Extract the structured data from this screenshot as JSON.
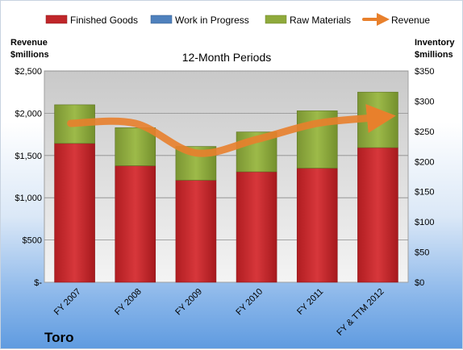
{
  "company": "Toro",
  "colors": {
    "finished_goods": "#c0262a",
    "work_in_progress": "#4f81bd",
    "raw_materials": "#8faa3c",
    "revenue": "#e8802c"
  },
  "chart_data": {
    "type": "bar",
    "title": "12-Month Periods",
    "stacked": true,
    "categories": [
      "FY 2007",
      "FY 2008",
      "FY 2009",
      "FY 2010",
      "FY 2011",
      "FY & TTM 2012"
    ],
    "left_axis": {
      "label_line1": "Revenue",
      "label_line2": "$millions",
      "ylim": [
        0,
        2500
      ],
      "ticks": [
        "$-",
        "$500",
        "$1,000",
        "$1,500",
        "$2,000",
        "$2,500"
      ],
      "tick_values": [
        0,
        500,
        1000,
        1500,
        2000,
        2500
      ]
    },
    "right_axis": {
      "label_line1": "Inventory",
      "label_line2": "$millions",
      "ylim": [
        0,
        350
      ],
      "ticks": [
        "$0",
        "$50",
        "$100",
        "$150",
        "$200",
        "$250",
        "$300",
        "$350"
      ],
      "tick_values": [
        0,
        50,
        100,
        150,
        200,
        250,
        300,
        350
      ]
    },
    "legend": [
      "Finished Goods",
      "Work in Progress",
      "Raw Materials",
      "Revenue"
    ],
    "legend_position": "top",
    "grid": true,
    "series": [
      {
        "name": "Finished Goods",
        "axis": "right",
        "values": [
          230,
          193,
          169,
          183,
          189,
          223
        ]
      },
      {
        "name": "Work in Progress",
        "axis": "right",
        "values": [
          0,
          0,
          0,
          0,
          0,
          0
        ]
      },
      {
        "name": "Raw Materials",
        "axis": "right",
        "values": [
          64,
          63,
          56,
          66,
          95,
          92
        ]
      },
      {
        "name": "Revenue",
        "axis": "left",
        "type": "line",
        "values": [
          1880,
          1880,
          1530,
          1690,
          1880,
          1950
        ]
      }
    ]
  }
}
